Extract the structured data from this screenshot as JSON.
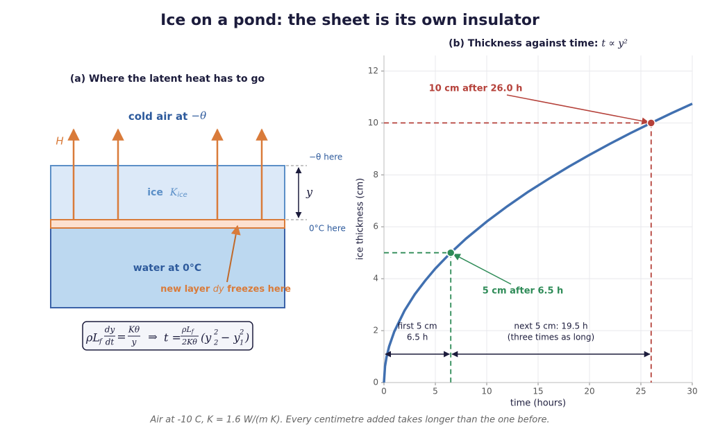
{
  "title": "Ice on a pond: the sheet is its own insulator",
  "caption": "Air at -10 C, K = 1.6 W/(m K). Every centimetre added takes longer than the one before.",
  "diagram": {
    "title": "(a) Where the latent heat has to go",
    "air": [
      "cold air at",
      "−θ"
    ],
    "heat": "H",
    "ice": [
      "ice",
      "K",
      "ice"
    ],
    "water": "water at 0°C",
    "layer": [
      "new layer",
      "dy",
      "freezes here"
    ],
    "top_label": "−θ here",
    "bottom_label": "0°C here",
    "thickness": "y",
    "formula": {
      "lhs": "ρL",
      "lhs_sub": "f",
      "frac1": [
        "dy",
        "dt"
      ],
      "eq": "=",
      "frac2": [
        "Kθ",
        "y"
      ],
      "implies": "⇒",
      "t": "t =",
      "frac3": [
        "ρL",
        "f",
        "2Kθ"
      ],
      "paren": [
        "(y",
        "2",
        "2",
        "− y",
        "2",
        "1",
        ")"
      ]
    }
  },
  "chart_data": {
    "type": "line",
    "title": "(b) Thickness against time:",
    "title_math": "t ∝ y²",
    "xlabel": "time  (hours)",
    "ylabel": "ice thickness  (cm)",
    "x": [
      0,
      0.1,
      0.25,
      0.5,
      1,
      2,
      3,
      4,
      5,
      6,
      6.5,
      8,
      10,
      12,
      14,
      16,
      18,
      20,
      22,
      24,
      26,
      28,
      30
    ],
    "series": [
      {
        "color": "#4170b0",
        "values": [
          0,
          0.62,
          0.98,
          1.39,
          1.96,
          2.77,
          3.4,
          3.92,
          4.39,
          4.8,
          5.0,
          5.55,
          6.2,
          6.79,
          7.34,
          7.84,
          8.32,
          8.77,
          9.2,
          9.61,
          10.0,
          10.38,
          10.74
        ]
      }
    ],
    "xlim": [
      0,
      30
    ],
    "xticks": [
      0,
      5,
      10,
      15,
      20,
      25,
      30
    ],
    "ylim": [
      0,
      12.6
    ],
    "yticks": [
      0,
      2,
      4,
      6,
      8,
      10,
      12
    ],
    "grid": true,
    "markers": [
      {
        "x": 6.5,
        "y": 5,
        "color": "#2e8b57",
        "label": "5 cm after 6.5 h"
      },
      {
        "x": 26,
        "y": 10,
        "color": "#b5413a",
        "label": "10 cm after 26.0 h"
      }
    ],
    "spans": [
      {
        "label": [
          "first 5 cm",
          "6.5 h"
        ]
      },
      {
        "label": [
          "next 5 cm: 19.5 h",
          "(three times as long)"
        ]
      }
    ],
    "span_color": "#1c1c3c"
  }
}
